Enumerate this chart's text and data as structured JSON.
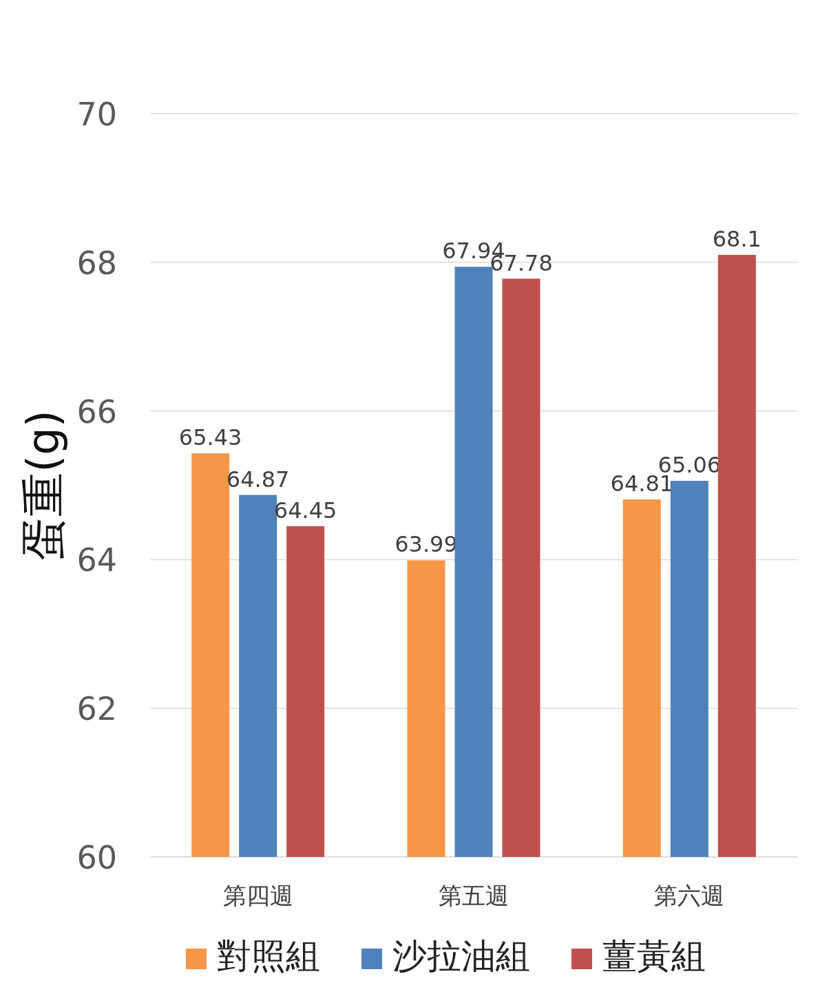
{
  "chart_data": {
    "type": "bar",
    "ylabel": "蛋重(g)",
    "categories": [
      "第四週",
      "第五週",
      "第六週"
    ],
    "series": [
      {
        "name": "對照組",
        "color": "#f79646",
        "values": [
          65.43,
          63.99,
          64.81
        ]
      },
      {
        "name": "沙拉油組",
        "color": "#4f81bd",
        "values": [
          64.87,
          67.94,
          65.06
        ]
      },
      {
        "name": "薑黃組",
        "color": "#c0504d",
        "values": [
          64.45,
          67.78,
          68.1
        ]
      }
    ],
    "ylim": [
      60,
      70
    ],
    "yticks": [
      60,
      62,
      64,
      66,
      68,
      70
    ],
    "grid": "y",
    "legend": "bottom",
    "data_labels": true
  }
}
